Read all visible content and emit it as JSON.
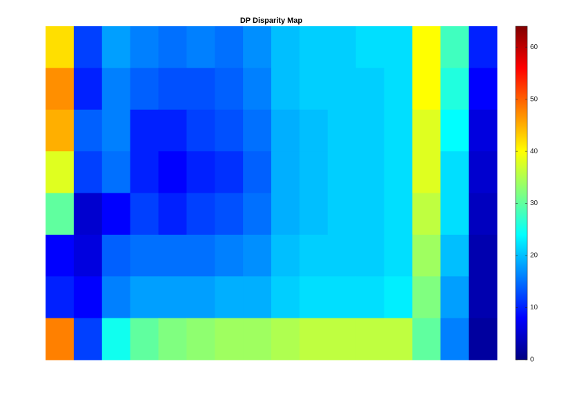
{
  "chart_data": {
    "type": "heatmap",
    "title": "DP Disparity Map",
    "colormap": "jet",
    "z": [
      [
        42,
        12,
        18,
        16,
        15,
        16,
        15,
        17,
        20,
        21,
        21,
        22,
        22,
        40,
        28,
        10
      ],
      [
        47,
        10,
        16,
        14,
        13,
        13,
        14,
        16,
        20,
        21,
        21,
        21,
        22,
        40,
        26,
        8
      ],
      [
        45,
        14,
        16,
        10,
        10,
        12,
        13,
        15,
        19,
        20,
        21,
        21,
        22,
        38,
        24,
        6
      ],
      [
        38,
        12,
        15,
        10,
        8,
        10,
        11,
        14,
        19,
        20,
        21,
        21,
        22,
        38,
        22,
        5
      ],
      [
        30,
        5,
        8,
        12,
        10,
        12,
        13,
        15,
        19,
        20,
        21,
        21,
        22,
        36,
        22,
        4
      ],
      [
        8,
        6,
        14,
        15,
        15,
        15,
        16,
        17,
        20,
        21,
        21,
        21,
        22,
        34,
        20,
        3
      ],
      [
        10,
        8,
        16,
        18,
        18,
        18,
        19,
        19,
        21,
        22,
        22,
        22,
        23,
        32,
        18,
        3
      ],
      [
        48,
        12,
        25,
        30,
        32,
        33,
        34,
        34,
        35,
        36,
        36,
        36,
        36,
        30,
        16,
        2
      ]
    ],
    "clim": [
      0,
      64
    ],
    "colorbar_ticks": [
      0,
      10,
      20,
      30,
      40,
      50,
      60
    ]
  }
}
